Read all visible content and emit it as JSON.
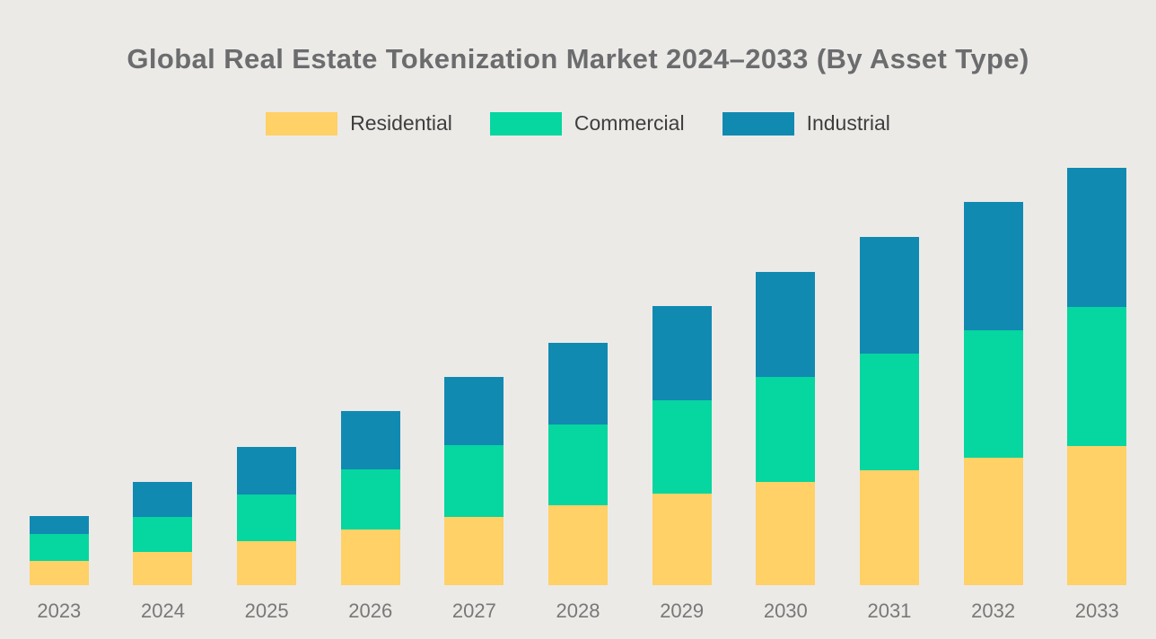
{
  "page": {
    "background": "#ECEAE7"
  },
  "chart_data": {
    "type": "bar",
    "stacked": true,
    "title": "Global Real Estate Tokenization Market 2024–2033 (By Asset Type)",
    "categories": [
      "2023",
      "2024",
      "2025",
      "2026",
      "2027",
      "2028",
      "2029",
      "2030",
      "2031",
      "2032",
      "2033"
    ],
    "series": [
      {
        "name": "Residential",
        "color": "#FFD166",
        "values": [
          2.7,
          3.7,
          4.9,
          6.2,
          7.6,
          8.9,
          10.2,
          11.5,
          12.8,
          14.2,
          15.5
        ]
      },
      {
        "name": "Commercial",
        "color": "#06D6A0",
        "values": [
          3.0,
          3.9,
          5.2,
          6.7,
          8.0,
          9.0,
          10.4,
          11.7,
          13.0,
          14.2,
          15.5
        ]
      },
      {
        "name": "Industrial",
        "color": "#118AB2",
        "values": [
          2.0,
          3.9,
          5.3,
          6.5,
          7.6,
          9.1,
          10.5,
          11.7,
          13.0,
          14.3,
          15.5
        ]
      }
    ],
    "xlabel": "",
    "ylabel": "",
    "ylim": [
      0,
      50
    ],
    "grid": false,
    "legend_position": "top",
    "value_axis_hidden": true
  }
}
